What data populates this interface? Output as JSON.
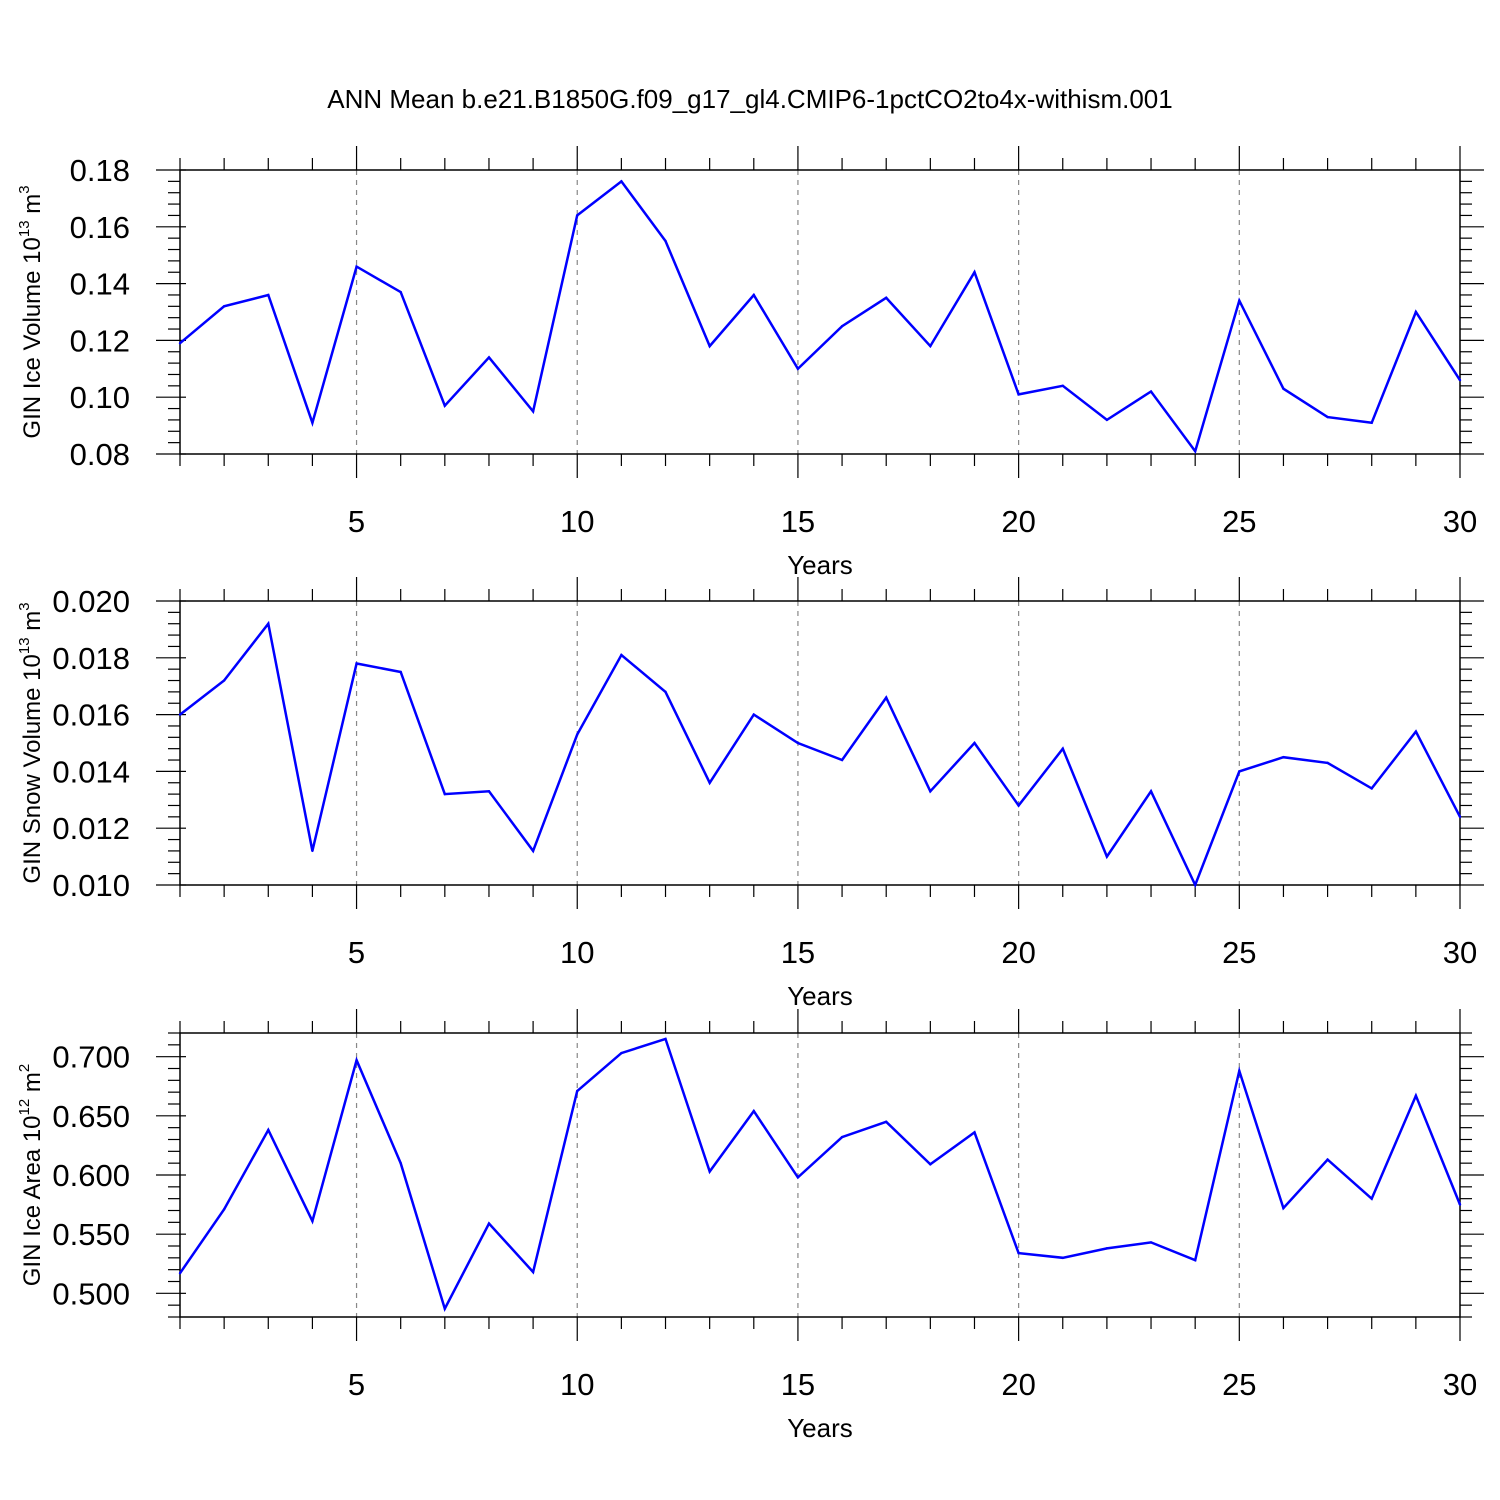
{
  "chart_data": {
    "title": "ANN Mean b.e21.B1850G.f09_g17_gl4.CMIP6-1pctCO2to4x-withism.001",
    "type": "line",
    "line_color": "#0000ff",
    "grid_color": "#888888",
    "panels": [
      {
        "ylabel_main": "GIN Ice Volume 10",
        "ylabel_exp": "13",
        "ylabel_unit": " m",
        "ylabel_unit_exp": "3",
        "xlabel": "Years",
        "ylim": [
          0.08,
          0.18
        ],
        "yticks": [
          "0.08",
          "0.10",
          "0.12",
          "0.14",
          "0.16",
          "0.18"
        ],
        "xlim": [
          1,
          30
        ],
        "xticks": [
          "5",
          "10",
          "15",
          "20",
          "25",
          "30"
        ],
        "x": [
          1,
          2,
          3,
          4,
          5,
          6,
          7,
          8,
          9,
          10,
          11,
          12,
          13,
          14,
          15,
          16,
          17,
          18,
          19,
          20,
          21,
          22,
          23,
          24,
          25,
          26,
          27,
          28,
          29,
          30
        ],
        "values": [
          0.119,
          0.132,
          0.136,
          0.091,
          0.146,
          0.137,
          0.097,
          0.114,
          0.095,
          0.164,
          0.176,
          0.155,
          0.118,
          0.136,
          0.11,
          0.125,
          0.135,
          0.118,
          0.144,
          0.101,
          0.104,
          0.092,
          0.102,
          0.081,
          0.134,
          0.103,
          0.093,
          0.091,
          0.13,
          0.106
        ]
      },
      {
        "ylabel_main": "GIN Snow Volume 10",
        "ylabel_exp": "13",
        "ylabel_unit": " m",
        "ylabel_unit_exp": "3",
        "xlabel": "Years",
        "ylim": [
          0.01,
          0.02
        ],
        "yticks": [
          "0.010",
          "0.012",
          "0.014",
          "0.016",
          "0.018",
          "0.020"
        ],
        "xlim": [
          1,
          30
        ],
        "xticks": [
          "5",
          "10",
          "15",
          "20",
          "25",
          "30"
        ],
        "x": [
          1,
          2,
          3,
          4,
          5,
          6,
          7,
          8,
          9,
          10,
          11,
          12,
          13,
          14,
          15,
          16,
          17,
          18,
          19,
          20,
          21,
          22,
          23,
          24,
          25,
          26,
          27,
          28,
          29,
          30
        ],
        "values": [
          0.016,
          0.0172,
          0.0192,
          0.0112,
          0.0178,
          0.0175,
          0.0132,
          0.0133,
          0.0112,
          0.0153,
          0.0181,
          0.0168,
          0.0136,
          0.016,
          0.015,
          0.0144,
          0.0166,
          0.0133,
          0.015,
          0.0128,
          0.0148,
          0.011,
          0.0133,
          0.01,
          0.014,
          0.0145,
          0.0143,
          0.0134,
          0.0154,
          0.0124
        ]
      },
      {
        "ylabel_main": "GIN Ice Area 10",
        "ylabel_exp": "12",
        "ylabel_unit": " m",
        "ylabel_unit_exp": "2",
        "xlabel": "Years",
        "ylim": [
          0.48,
          0.72
        ],
        "yticks": [
          "0.500",
          "0.550",
          "0.600",
          "0.650",
          "0.700"
        ],
        "xlim": [
          1,
          30
        ],
        "xticks": [
          "5",
          "10",
          "15",
          "20",
          "25",
          "30"
        ],
        "x": [
          1,
          2,
          3,
          4,
          5,
          6,
          7,
          8,
          9,
          10,
          11,
          12,
          13,
          14,
          15,
          16,
          17,
          18,
          19,
          20,
          21,
          22,
          23,
          24,
          25,
          26,
          27,
          28,
          29,
          30
        ],
        "values": [
          0.517,
          0.571,
          0.638,
          0.561,
          0.697,
          0.61,
          0.487,
          0.559,
          0.518,
          0.671,
          0.703,
          0.715,
          0.603,
          0.654,
          0.598,
          0.632,
          0.645,
          0.609,
          0.636,
          0.534,
          0.53,
          0.538,
          0.543,
          0.528,
          0.688,
          0.572,
          0.613,
          0.58,
          0.667,
          0.575
        ]
      }
    ]
  }
}
